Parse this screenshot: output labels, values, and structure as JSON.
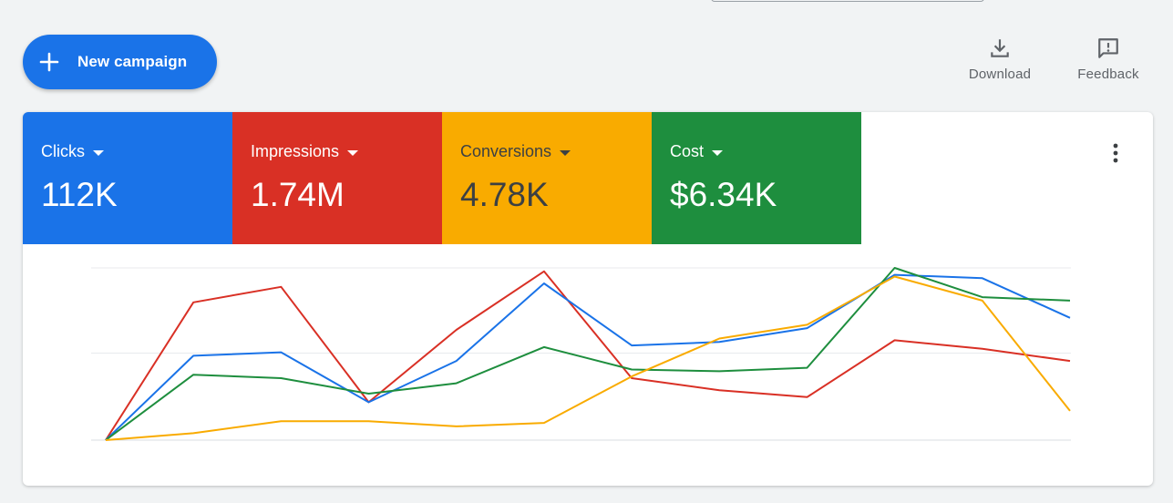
{
  "toolbar": {
    "new_campaign_label": "New campaign",
    "download_label": "Download",
    "feedback_label": "Feedback",
    "icons": {
      "new": "plus-icon",
      "download": "download-icon",
      "feedback": "feedback-icon",
      "more": "more-vert-icon"
    }
  },
  "scorecards": [
    {
      "label": "Clicks",
      "value": "112K",
      "color": "#1a73e8"
    },
    {
      "label": "Impressions",
      "value": "1.74M",
      "color": "#d93025"
    },
    {
      "label": "Conversions",
      "value": "4.78K",
      "color": "#f9ab00"
    },
    {
      "label": "Cost",
      "value": "$6.34K",
      "color": "#1e8e3e"
    }
  ],
  "chart_data": {
    "type": "line",
    "grid": true,
    "ylim": [
      0,
      1
    ],
    "x": [
      1,
      2,
      3,
      4,
      5,
      6,
      7,
      8,
      9,
      10,
      11,
      12
    ],
    "series": [
      {
        "metric": "Impressions",
        "color": "#d93025",
        "values": [
          0.0,
          0.8,
          0.89,
          0.22,
          0.64,
          0.98,
          0.36,
          0.29,
          0.25,
          0.58,
          0.53,
          0.46
        ]
      },
      {
        "metric": "Clicks",
        "color": "#1a73e8",
        "values": [
          0.0,
          0.49,
          0.51,
          0.22,
          0.46,
          0.91,
          0.55,
          0.57,
          0.65,
          0.96,
          0.94,
          0.71
        ]
      },
      {
        "metric": "Cost",
        "color": "#1e8e3e",
        "values": [
          0.0,
          0.38,
          0.36,
          0.27,
          0.33,
          0.54,
          0.41,
          0.4,
          0.42,
          1.0,
          0.83,
          0.81
        ]
      },
      {
        "metric": "Conversions",
        "color": "#f9ab00",
        "values": [
          0.0,
          0.04,
          0.11,
          0.11,
          0.08,
          0.1,
          0.37,
          0.59,
          0.67,
          0.95,
          0.81,
          0.17
        ]
      }
    ]
  }
}
